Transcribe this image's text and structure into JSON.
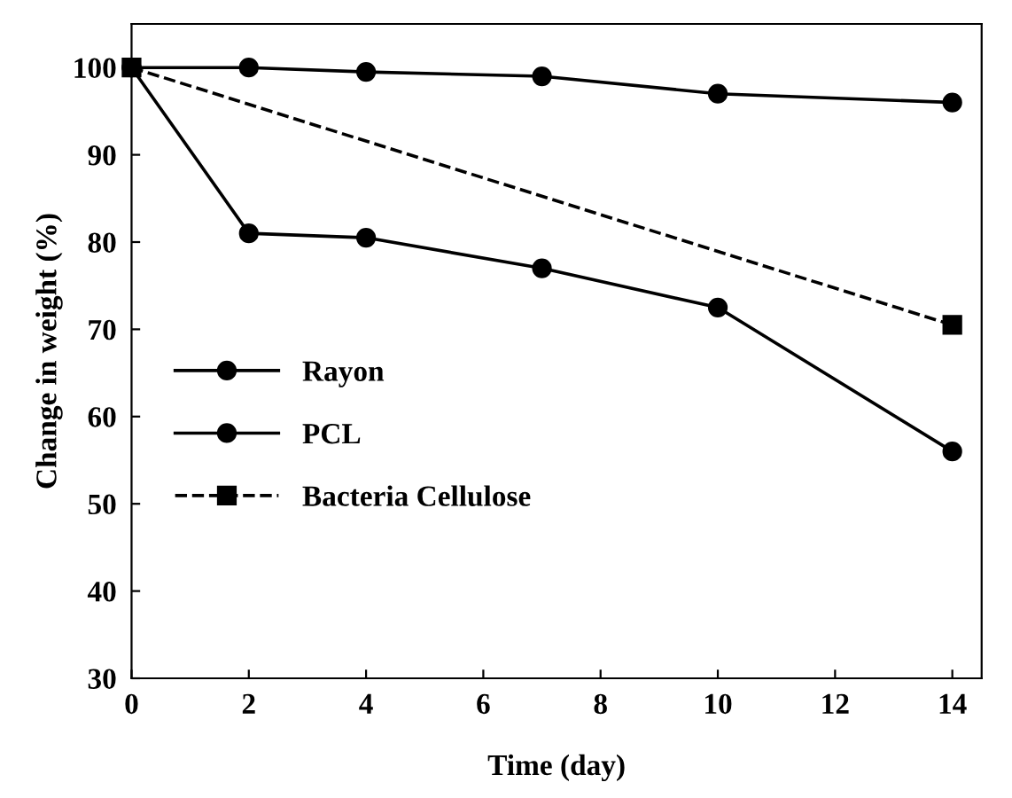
{
  "chart_data": {
    "type": "line",
    "xlabel": "Time (day)",
    "ylabel": "Change in weight (%)",
    "xlim": [
      0,
      14.5
    ],
    "xticks": [
      0,
      2,
      4,
      6,
      8,
      10,
      12,
      14
    ],
    "ylim": [
      30,
      105
    ],
    "yticks": [
      30,
      40,
      50,
      60,
      70,
      80,
      90,
      100
    ],
    "grid": false,
    "legend": "left",
    "series": [
      {
        "name": "Rayon",
        "color": "#000000",
        "x": [
          0,
          2,
          4,
          7,
          10,
          14
        ],
        "values": [
          100,
          81,
          80.5,
          77,
          72.5,
          56
        ],
        "marker": "circle",
        "line_style": "solid"
      },
      {
        "name": "PCL",
        "color": "#000000",
        "x": [
          0,
          2,
          4,
          7,
          10,
          14
        ],
        "values": [
          100,
          100,
          99.5,
          99,
          97,
          96
        ],
        "marker": "circle",
        "line_style": "solid"
      },
      {
        "name": "Bacteria Cellulose",
        "color": "#000000",
        "x": [
          0,
          14
        ],
        "values": [
          100,
          70.5
        ],
        "marker": "square",
        "line_style": "dashed"
      }
    ]
  }
}
